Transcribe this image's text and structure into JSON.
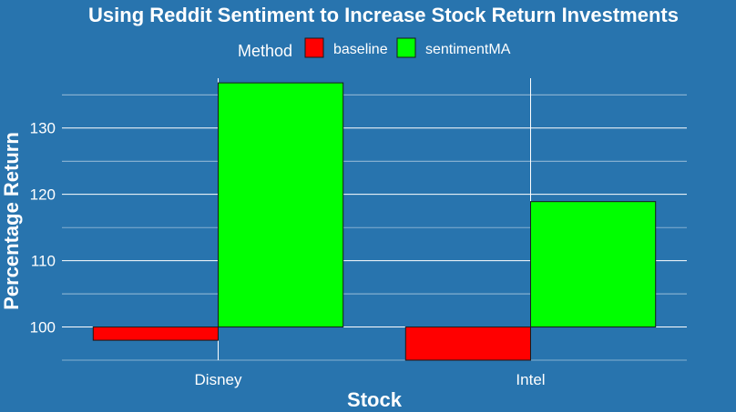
{
  "chart_data": {
    "type": "bar",
    "title": "Using Reddit Sentiment to Increase Stock Return Investments",
    "xlabel": "Stock",
    "ylabel": "Percentage Return",
    "categories": [
      "Disney",
      "Intel"
    ],
    "baseline_value": 100,
    "series": [
      {
        "name": "baseline",
        "values": [
          98,
          95
        ],
        "color": "#ff0000"
      },
      {
        "name": "sentimentMA",
        "values": [
          136.8,
          118.9
        ],
        "color": "#00ff00"
      }
    ],
    "ylim": [
      95,
      137.5
    ],
    "yticks": [
      100,
      110,
      120,
      130
    ],
    "grid": true,
    "legend": {
      "title": "Method",
      "placement": "top"
    },
    "background_color": "#2874ae"
  }
}
